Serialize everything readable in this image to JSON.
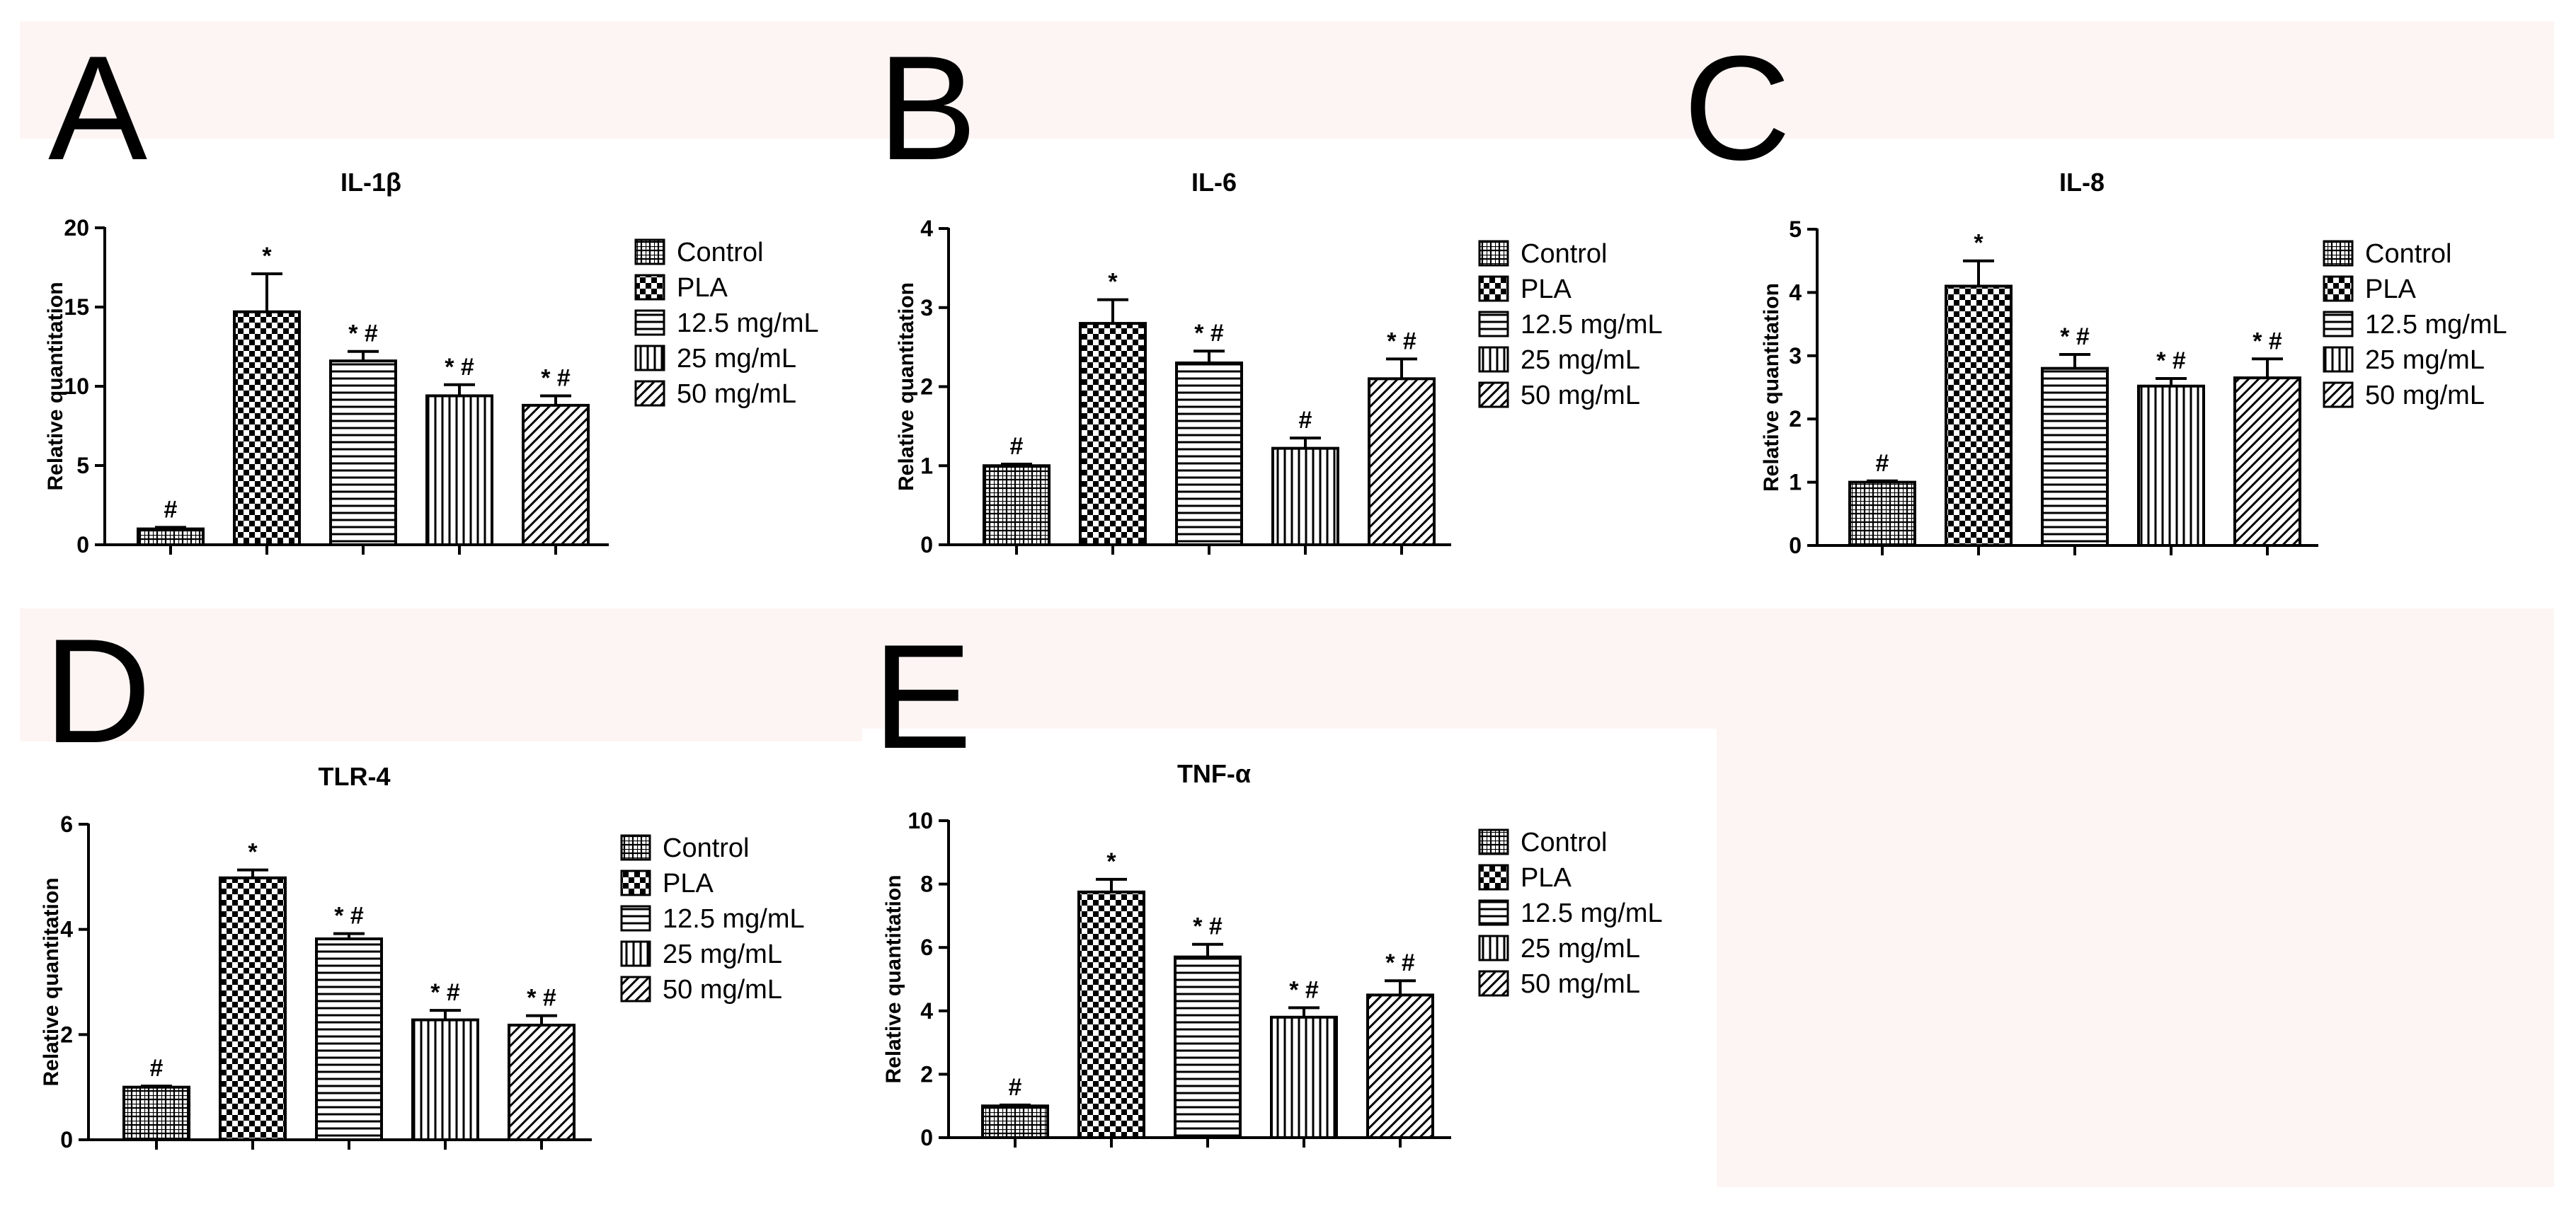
{
  "legend": {
    "entries": [
      {
        "label": "Control",
        "pattern": "grid"
      },
      {
        "label": "PLA",
        "pattern": "checker"
      },
      {
        "label": "12.5 mg/mL",
        "pattern": "horizontal"
      },
      {
        "label": "25 mg/mL",
        "pattern": "vertical"
      },
      {
        "label": "50 mg/mL",
        "pattern": "diagonal"
      }
    ]
  },
  "chart_data": [
    {
      "panel": "A",
      "type": "bar",
      "title": "IL-1β",
      "ylabel": "Relative quantitation",
      "xlabel": "",
      "ylim": [
        0,
        20
      ],
      "yticks": [
        0,
        5,
        10,
        15,
        20
      ],
      "yticklabels": [
        "0",
        "5",
        "10",
        "15",
        "20"
      ],
      "categories": [
        "Control",
        "PLA",
        "12.5 mg/mL",
        "25 mg/mL",
        "50 mg/mL"
      ],
      "values": [
        1.0,
        14.7,
        11.6,
        9.4,
        8.8
      ],
      "errors": [
        0.1,
        2.4,
        0.6,
        0.7,
        0.6
      ],
      "annotations": [
        "#",
        "*",
        "* #",
        "* #",
        "* #"
      ],
      "legend_position": "right"
    },
    {
      "panel": "B",
      "type": "bar",
      "title": "IL-6",
      "ylabel": "Relative quantitation",
      "xlabel": "",
      "ylim": [
        0,
        4
      ],
      "yticks": [
        0,
        1,
        2,
        3,
        4
      ],
      "yticklabels": [
        "0",
        "1",
        "2",
        "3",
        "4"
      ],
      "categories": [
        "Control",
        "PLA",
        "12.5 mg/mL",
        "25 mg/mL",
        "50 mg/mL"
      ],
      "values": [
        1.0,
        2.8,
        2.3,
        1.22,
        2.1
      ],
      "errors": [
        0.02,
        0.3,
        0.15,
        0.13,
        0.25
      ],
      "annotations": [
        "#",
        "*",
        "* #",
        "#",
        "* #"
      ],
      "legend_position": "right"
    },
    {
      "panel": "C",
      "type": "bar",
      "title": "IL-8",
      "ylabel": "Relative quantitation",
      "xlabel": "",
      "ylim": [
        0,
        5
      ],
      "yticks": [
        0,
        1,
        2,
        3,
        4,
        5
      ],
      "yticklabels": [
        "0",
        "1",
        "2",
        "3",
        "4",
        "5"
      ],
      "categories": [
        "Control",
        "PLA",
        "12.5 mg/mL",
        "25 mg/mL",
        "50 mg/mL"
      ],
      "values": [
        1.0,
        4.1,
        2.8,
        2.52,
        2.65
      ],
      "errors": [
        0.02,
        0.4,
        0.22,
        0.12,
        0.3
      ],
      "annotations": [
        "#",
        "*",
        "* #",
        "* #",
        "* #"
      ],
      "legend_position": "right"
    },
    {
      "panel": "D",
      "type": "bar",
      "title": "TLR-4",
      "ylabel": "Relative quantitation",
      "xlabel": "",
      "ylim": [
        0,
        6
      ],
      "yticks": [
        0,
        2,
        4,
        6
      ],
      "yticklabels": [
        "0",
        "2",
        "4",
        "6"
      ],
      "categories": [
        "Control",
        "PLA",
        "12.5 mg/mL",
        "25 mg/mL",
        "50 mg/mL"
      ],
      "values": [
        1.0,
        4.98,
        3.82,
        2.28,
        2.18
      ],
      "errors": [
        0.02,
        0.15,
        0.1,
        0.18,
        0.18
      ],
      "annotations": [
        "#",
        "*",
        "* #",
        "* #",
        "* #"
      ],
      "legend_position": "right"
    },
    {
      "panel": "E",
      "type": "bar",
      "title": "TNF-α",
      "ylabel": "Relative quantitation",
      "xlabel": "",
      "ylim": [
        0,
        10
      ],
      "yticks": [
        0,
        2,
        4,
        6,
        8,
        10
      ],
      "yticklabels": [
        "0",
        "2",
        "4",
        "6",
        "8",
        "10"
      ],
      "categories": [
        "Control",
        "PLA",
        "12.5 mg/mL",
        "25 mg/mL",
        "50 mg/mL"
      ],
      "values": [
        1.0,
        7.75,
        5.7,
        3.8,
        4.5
      ],
      "errors": [
        0.03,
        0.4,
        0.4,
        0.3,
        0.45
      ],
      "annotations": [
        "#",
        "*",
        "* #",
        "* #",
        "* #"
      ],
      "legend_position": "right"
    }
  ]
}
